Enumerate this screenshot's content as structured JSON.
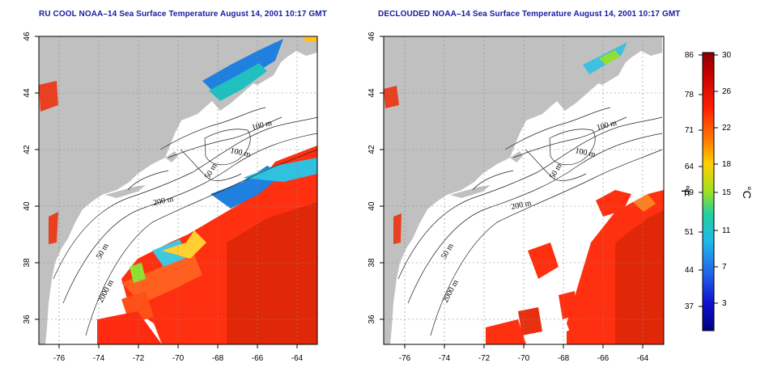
{
  "titles": {
    "left": "RU COOL NOAA–14 Sea Surface Temperature August 14, 2001 10:17 GMT",
    "right": "DECLOUDED NOAA–14 Sea Surface Temperature August 14, 2001 10:17 GMT"
  },
  "axes": {
    "lon_ticks": [
      "-76",
      "-74",
      "-72",
      "-70",
      "-68",
      "-66",
      "-64"
    ],
    "lat_ticks": [
      "46",
      "44",
      "42",
      "40",
      "38",
      "36"
    ]
  },
  "contour_labels": {
    "left": [
      "100 m",
      "100 m",
      "50 m",
      "200 m",
      "50 m",
      "2000 m"
    ],
    "right": [
      "100 m",
      "100 m",
      "50 m",
      "200 m",
      "50 m",
      "2000 m"
    ]
  },
  "colorbar": {
    "fahrenheit_ticks": [
      "86",
      "78",
      "71",
      "64",
      "59",
      "51",
      "44",
      "37"
    ],
    "celsius_ticks": [
      "30",
      "26",
      "22",
      "18",
      "15",
      "11",
      "7",
      "3"
    ],
    "fahrenheit_unit": "°F",
    "celsius_unit": "°C",
    "colors": [
      "#8b0000",
      "#d01010",
      "#ff3010",
      "#ff7a10",
      "#ffc020",
      "#e8e820",
      "#90e030",
      "#20d0a0",
      "#20b0e0",
      "#2060e0",
      "#1010c0",
      "#080080"
    ]
  },
  "colors": {
    "land": "#c0c0c0",
    "ocean": "#ffffff",
    "title": "#1a1aa0",
    "warm_sst": "#e83010"
  }
}
